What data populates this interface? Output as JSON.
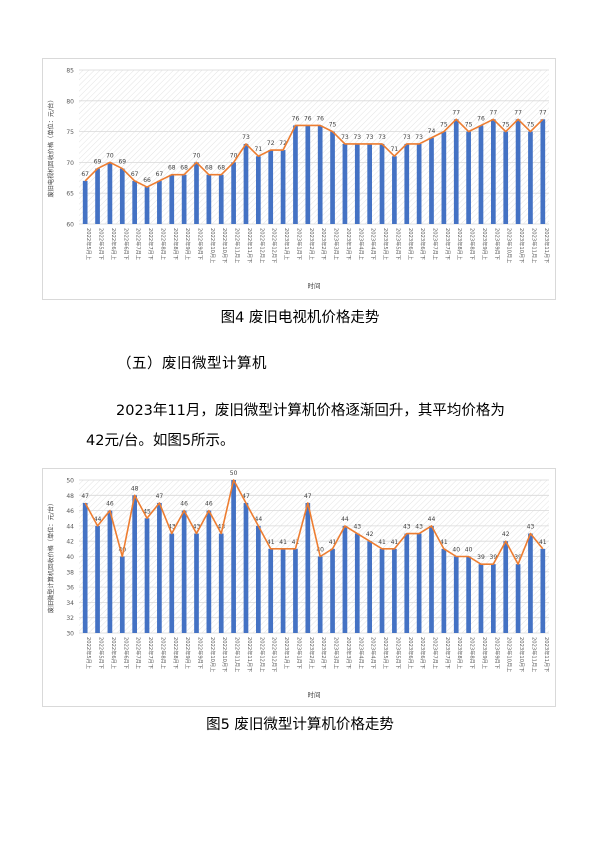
{
  "captions": {
    "fig4": "图4  废旧电视机价格走势",
    "fig5": "图5  废旧微型计算机价格走势"
  },
  "section": {
    "heading": "（五）废旧微型计算机",
    "para_line1": "2023年11月，废旧微型计算机价格逐渐回升，其平均价格为",
    "para_line2": "42元/台。如图5所示。"
  },
  "colors": {
    "bar": "#4472c4",
    "line": "#ed7d31",
    "grid": "#d9d9d9"
  },
  "chart_data": [
    {
      "type": "bar",
      "xlabel": "时间",
      "ylabel": "废旧电视机回收价格（单位：元/台）",
      "ylim": [
        60,
        85
      ],
      "yticks": [
        60,
        65,
        70,
        75,
        80,
        85
      ],
      "categories": [
        "2022年5月上",
        "2022年5月下",
        "2022年6月上",
        "2022年6月下",
        "2022年7月上",
        "2022年7月下",
        "2022年8月上",
        "2022年8月下",
        "2022年9月上",
        "2022年9月下",
        "2022年10月上",
        "2022年10月下",
        "2022年11月上",
        "2022年11月下",
        "2022年12月上",
        "2022年12月下",
        "2023年1月上",
        "2023年1月下",
        "2023年2月上",
        "2023年2月下",
        "2023年3月上",
        "2023年3月下",
        "2023年4月上",
        "2023年4月下",
        "2023年5月上",
        "2023年5月下",
        "2023年6月上",
        "2023年6月下",
        "2023年7月上",
        "2023年7月下",
        "2023年8月上",
        "2023年8月下",
        "2023年9月上",
        "2023年9月下",
        "2023年10月上",
        "2023年10月下",
        "2023年11月上",
        "2023年11月下"
      ],
      "values": [
        67,
        69,
        70,
        69,
        67,
        66,
        67,
        68,
        68,
        70,
        68,
        68,
        70,
        73,
        71,
        72,
        72,
        76,
        76,
        76,
        75,
        73,
        73,
        73,
        73,
        71,
        73,
        73,
        74,
        75,
        77,
        75,
        76,
        77,
        75,
        77,
        75,
        77
      ],
      "overlay": "line"
    },
    {
      "type": "bar",
      "xlabel": "时间",
      "ylabel": "废旧微型计算机回收价格（单位：元/台）",
      "ylim": [
        30,
        50
      ],
      "yticks": [
        30,
        32,
        34,
        36,
        38,
        40,
        42,
        44,
        46,
        48,
        50
      ],
      "categories": [
        "2022年5月上",
        "2022年5月下",
        "2022年6月上",
        "2022年6月下",
        "2022年7月上",
        "2022年7月下",
        "2022年8月上",
        "2022年8月下",
        "2022年9月上",
        "2022年9月下",
        "2022年10月上",
        "2022年10月下",
        "2022年11月上",
        "2022年11月下",
        "2022年12月上",
        "2022年12月下",
        "2023年1月上",
        "2023年1月下",
        "2023年2月上",
        "2023年2月下",
        "2023年3月上",
        "2023年3月下",
        "2023年4月上",
        "2023年4月下",
        "2023年5月上",
        "2023年5月下",
        "2023年6月上",
        "2023年6月下",
        "2023年7月上",
        "2023年7月下",
        "2023年8月上",
        "2023年8月下",
        "2023年9月上",
        "2023年9月下",
        "2023年10月上",
        "2023年10月下",
        "2023年11月上",
        "2023年11月下"
      ],
      "values": [
        47,
        44,
        46,
        40,
        48,
        45,
        47,
        43,
        46,
        43,
        46,
        43,
        50,
        47,
        44,
        41,
        41,
        41,
        47,
        40,
        41,
        44,
        43,
        42,
        41,
        41,
        43,
        43,
        44,
        41,
        40,
        40,
        39,
        39,
        42,
        39,
        43,
        41
      ],
      "overlay": "line"
    }
  ]
}
